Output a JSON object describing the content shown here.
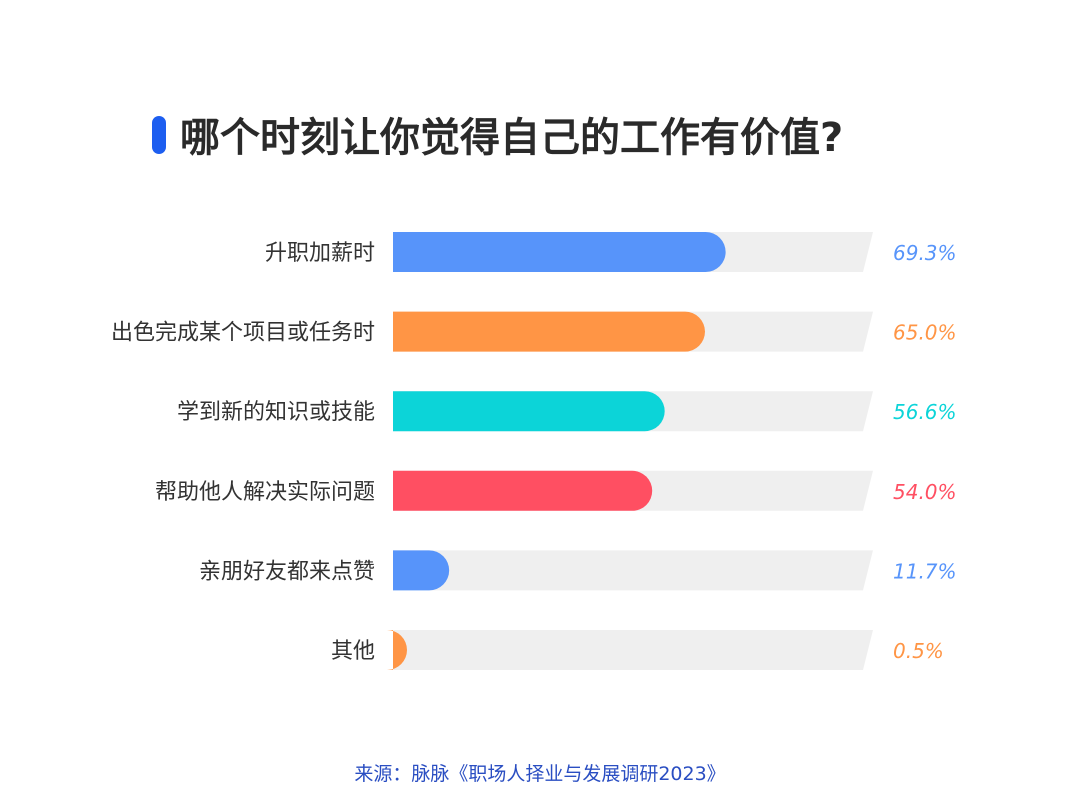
{
  "chart_data": {
    "type": "bar",
    "orientation": "horizontal",
    "title": "哪个时刻让你觉得自己的工作有价值?",
    "categories": [
      "升职加薪时",
      "出色完成某个项目或任务时",
      "学到新的知识或技能",
      "帮助他人解决实际问题",
      "亲朋好友都来点赞",
      "其他"
    ],
    "values": [
      69.3,
      65.0,
      56.6,
      54.0,
      11.7,
      0.5
    ],
    "value_labels": [
      "69.3%",
      "65.0%",
      "56.6%",
      "54.0%",
      "11.7%",
      "0.5%"
    ],
    "xlim": [
      0,
      100
    ],
    "unit": "%",
    "grid": false,
    "legend": "none",
    "bar_colors": [
      "#5794fa",
      "#ff9545",
      "#0cd4d8",
      "#ff4f62",
      "#5794fa",
      "#ff9545"
    ],
    "track_color": "#efefef",
    "source": "来源：脉脉《职场人择业与发展调研2023》"
  },
  "colors": {
    "accent": "#1d5ef0",
    "title": "#2a2a2a",
    "category_text": "#333333",
    "source_text": "#2a4ec2"
  }
}
